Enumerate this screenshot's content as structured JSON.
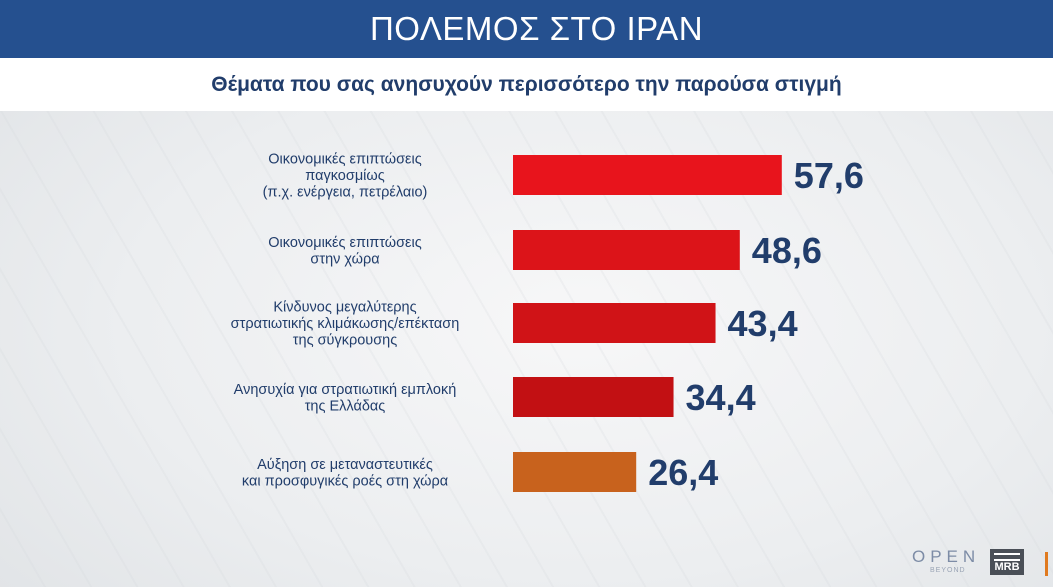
{
  "header": {
    "title": "ΠΟΛΕΜΟΣ ΣΤΟ ΙΡΑΝ"
  },
  "subheader": {
    "title": "Θέματα που σας ανησυχούν περισσότερο την παρούσα στιγμή"
  },
  "chart_data": {
    "type": "bar",
    "orientation": "horizontal",
    "categories": [
      [
        "Οικονομικές επιπτώσεις",
        "παγκοσμίως",
        "(π.χ. ενέργεια, πετρέλαιο)"
      ],
      [
        "Οικονομικές επιπτώσεις",
        "στην χώρα"
      ],
      [
        "Κίνδυνος μεγαλύτερης",
        "στρατιωτικής κλιμάκωσης/επέκταση",
        "της σύγκρουσης"
      ],
      [
        "Ανησυχία για στρατιωτική εμπλοκή",
        "της Ελλάδας"
      ],
      [
        "Αύξηση σε μεταναστευτικές",
        "και προσφυγικές ροές στη χώρα"
      ]
    ],
    "values": [
      57.6,
      48.6,
      43.4,
      34.4,
      26.4
    ],
    "value_labels": [
      "57,6",
      "48,6",
      "43,4",
      "34,4",
      "26,4"
    ],
    "colors": [
      "#e8141c",
      "#dc1419",
      "#d01317",
      "#c21013",
      "#c8621d"
    ],
    "value_label_color": "#213d6b",
    "category_label_color": "#213d6b",
    "title": "",
    "grid": false,
    "legend": "none"
  },
  "branding": {
    "channel_logo": "OPEN",
    "channel_tagline": "BEYOND",
    "pollster_logo": "MRB"
  }
}
